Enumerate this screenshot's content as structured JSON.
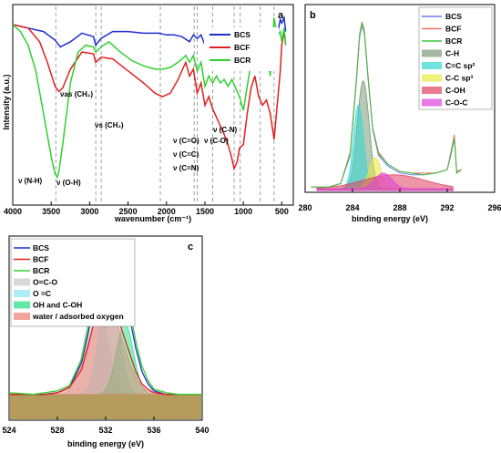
{
  "chart_data": [
    {
      "panel_label": "a",
      "type": "line",
      "xlabel": "wavenumber (cm⁻¹)",
      "ylabel": "Intensity (a.u.)",
      "xlim": [
        4000,
        350
      ],
      "x_ticks": [
        "4000",
        "3500",
        "3000",
        "2500",
        "2000",
        "1500",
        "1000",
        "500"
      ],
      "legend_placement": "top-right",
      "annotations": [
        {
          "text": "ν (N-H)",
          "x": 3720
        },
        {
          "text": "ν (O-H)",
          "x": 3380
        },
        {
          "text": "νas (CH₂)",
          "x": 3300
        },
        {
          "text": "νs (CH₂)",
          "x": 2900
        },
        {
          "text": "ν (C=O)",
          "x": 1700
        },
        {
          "text": "ν (C=C)",
          "x": 1700
        },
        {
          "text": "ν (C=N)",
          "x": 1700
        },
        {
          "text": "ν (C-N)",
          "x": 1100
        },
        {
          "text": "ν (C-O)",
          "x": 1100
        }
      ],
      "series": [
        {
          "name": "BCS",
          "color": "#1f2fd0",
          "x": [
            4000,
            3800,
            3600,
            3450,
            3380,
            3250,
            3100,
            2950,
            2920,
            2850,
            2700,
            2500,
            2300,
            2100,
            2000,
            1900,
            1800,
            1700,
            1650,
            1600,
            1550,
            1500,
            1450,
            1400,
            1350,
            1300,
            1250,
            1200,
            1150,
            1100,
            1050,
            1000,
            950,
            900,
            850,
            800,
            750,
            700,
            650,
            600,
            560,
            520,
            500,
            470,
            450
          ],
          "y": [
            0.92,
            0.9,
            0.88,
            0.83,
            0.79,
            0.82,
            0.87,
            0.85,
            0.8,
            0.84,
            0.88,
            0.88,
            0.87,
            0.87,
            0.86,
            0.86,
            0.85,
            0.82,
            0.86,
            0.84,
            0.86,
            0.8,
            0.84,
            0.86,
            0.84,
            0.85,
            0.83,
            0.84,
            0.82,
            0.84,
            0.81,
            0.86,
            0.87,
            0.85,
            0.87,
            0.86,
            0.88,
            0.87,
            0.88,
            0.83,
            0.86,
            0.95,
            0.93,
            0.96,
            0.88
          ]
        },
        {
          "name": "BCF",
          "color": "#e02020",
          "x": [
            4000,
            3800,
            3650,
            3550,
            3450,
            3400,
            3350,
            3250,
            3100,
            2950,
            2920,
            2850,
            2700,
            2500,
            2300,
            2150,
            2050,
            1950,
            1850,
            1750,
            1700,
            1650,
            1600,
            1550,
            1500,
            1450,
            1400,
            1350,
            1300,
            1250,
            1200,
            1150,
            1120,
            1080,
            1050,
            1000,
            950,
            900,
            850,
            800,
            750,
            700,
            650,
            600,
            560,
            520,
            500,
            470,
            450
          ],
          "y": [
            0.92,
            0.9,
            0.82,
            0.7,
            0.56,
            0.53,
            0.55,
            0.66,
            0.76,
            0.75,
            0.7,
            0.73,
            0.72,
            0.65,
            0.58,
            0.52,
            0.5,
            0.52,
            0.6,
            0.7,
            0.62,
            0.66,
            0.52,
            0.58,
            0.45,
            0.5,
            0.43,
            0.38,
            0.33,
            0.28,
            0.22,
            0.14,
            0.08,
            0.12,
            0.2,
            0.22,
            0.4,
            0.55,
            0.62,
            0.5,
            0.45,
            0.48,
            0.4,
            0.25,
            0.45,
            0.65,
            0.8,
            0.88,
            0.8
          ]
        },
        {
          "name": "BCR",
          "color": "#30d030",
          "x": [
            4000,
            3900,
            3800,
            3700,
            3600,
            3500,
            3450,
            3420,
            3400,
            3350,
            3250,
            3150,
            3050,
            2950,
            2920,
            2850,
            2750,
            2600,
            2450,
            2300,
            2150,
            2050,
            1950,
            1850,
            1750,
            1700,
            1650,
            1600,
            1550,
            1500,
            1450,
            1400,
            1350,
            1300,
            1250,
            1200,
            1150,
            1100,
            1050,
            1000,
            950,
            900,
            850,
            800,
            750,
            700,
            650,
            600,
            560,
            520,
            500,
            470,
            450
          ],
          "y": [
            0.92,
            0.88,
            0.8,
            0.65,
            0.4,
            0.15,
            0.05,
            0.03,
            0.06,
            0.22,
            0.58,
            0.76,
            0.8,
            0.79,
            0.76,
            0.79,
            0.82,
            0.76,
            0.71,
            0.68,
            0.66,
            0.66,
            0.67,
            0.7,
            0.74,
            0.7,
            0.74,
            0.65,
            0.7,
            0.56,
            0.62,
            0.58,
            0.62,
            0.58,
            0.6,
            0.56,
            0.6,
            0.55,
            0.5,
            0.42,
            0.56,
            0.7,
            0.76,
            0.7,
            0.74,
            0.8,
            0.62,
            0.96,
            0.85,
            0.88,
            0.82,
            0.9,
            0.8
          ]
        }
      ]
    },
    {
      "panel_label": "b",
      "type": "line",
      "xlabel": "binding energy (eV)",
      "xlim": [
        280,
        296
      ],
      "x_ticks": [
        "280",
        "284",
        "288",
        "292",
        "296"
      ],
      "legend_placement": "top-right",
      "legend": [
        "BCS",
        "BCF",
        "BCR",
        "C-H",
        "C=C sp²",
        "C-C sp³",
        "C-OH",
        "C-O-C"
      ],
      "series": [
        {
          "name": "BCS",
          "color": "#6a7ff0",
          "x": [
            280.5,
            282,
            283,
            283.8,
            284.3,
            284.6,
            284.8,
            285.0,
            285.3,
            285.7,
            286.2,
            287,
            288,
            289,
            290,
            291,
            292,
            292.3,
            292.6,
            292.8,
            293.2
          ],
          "y": [
            0.02,
            0.02,
            0.04,
            0.2,
            0.6,
            0.88,
            0.95,
            0.9,
            0.65,
            0.35,
            0.2,
            0.14,
            0.1,
            0.09,
            0.09,
            0.1,
            0.12,
            0.2,
            0.3,
            0.1,
            0.12
          ]
        },
        {
          "name": "BCF",
          "color": "#f07060",
          "x": [
            280.5,
            282,
            283,
            283.8,
            284.3,
            284.6,
            284.8,
            285.0,
            285.3,
            285.7,
            286.2,
            287,
            288,
            289,
            290,
            291,
            292,
            292.3,
            292.6,
            292.8,
            293.2
          ],
          "y": [
            0.02,
            0.02,
            0.04,
            0.22,
            0.62,
            0.9,
            0.97,
            0.92,
            0.67,
            0.36,
            0.22,
            0.15,
            0.11,
            0.1,
            0.1,
            0.1,
            0.12,
            0.22,
            0.32,
            0.11,
            0.12
          ]
        },
        {
          "name": "BCR",
          "color": "#40c040",
          "x": [
            280.5,
            282,
            283,
            283.8,
            284.3,
            284.6,
            284.8,
            285.0,
            285.3,
            285.7,
            286.2,
            287,
            288,
            289,
            290,
            291,
            292,
            292.3,
            292.6,
            292.8,
            293.2
          ],
          "y": [
            0.02,
            0.02,
            0.04,
            0.21,
            0.61,
            0.89,
            0.96,
            0.91,
            0.66,
            0.36,
            0.21,
            0.15,
            0.11,
            0.1,
            0.09,
            0.1,
            0.12,
            0.21,
            0.3,
            0.1,
            0.12
          ]
        },
        {
          "name": "C-H",
          "color": "#7a9a7a",
          "center": 284.9,
          "height": 0.62,
          "width": 0.5
        },
        {
          "name": "C=C sp²",
          "color": "#30d8d0",
          "center": 284.5,
          "height": 0.48,
          "width": 0.42
        },
        {
          "name": "C-C sp³",
          "color": "#e8e840",
          "center": 285.9,
          "height": 0.18,
          "width": 0.5
        },
        {
          "name": "C-OH",
          "color": "#e04060",
          "center": 287.5,
          "height": 0.08,
          "width": 2.6
        },
        {
          "name": "C-O-C",
          "color": "#e040e0",
          "center": 286.6,
          "height": 0.09,
          "width": 0.7
        }
      ]
    },
    {
      "panel_label": "c",
      "type": "line",
      "xlabel": "binding energy (eV)",
      "xlim": [
        524,
        540
      ],
      "x_ticks": [
        "524",
        "528",
        "532",
        "536",
        "540"
      ],
      "legend_placement": "top-left",
      "legend": [
        "BCS",
        "BCF",
        "BCR",
        "O=C-O",
        "O =C",
        "OH and C-OH",
        "water / adsorbed oxygen"
      ],
      "series": [
        {
          "name": "BCS",
          "color": "#1f2fd0",
          "x": [
            524,
            526,
            527,
            528,
            529,
            530,
            530.5,
            531,
            531.5,
            532,
            532.5,
            533,
            533.5,
            534,
            534.5,
            535,
            535.5,
            536,
            537,
            538,
            540
          ],
          "y": [
            0.12,
            0.12,
            0.12,
            0.13,
            0.16,
            0.3,
            0.45,
            0.62,
            0.78,
            0.88,
            0.9,
            0.85,
            0.72,
            0.55,
            0.38,
            0.25,
            0.18,
            0.14,
            0.12,
            0.12,
            0.12
          ]
        },
        {
          "name": "BCF",
          "color": "#e02020",
          "x": [
            524,
            526,
            527,
            528,
            529,
            530,
            530.5,
            531,
            531.5,
            532,
            532.5,
            533,
            533.5,
            534,
            534.5,
            535,
            535.5,
            536,
            537,
            538,
            540
          ],
          "y": [
            0.12,
            0.12,
            0.12,
            0.13,
            0.16,
            0.26,
            0.38,
            0.52,
            0.62,
            0.65,
            0.62,
            0.55,
            0.45,
            0.35,
            0.25,
            0.18,
            0.15,
            0.13,
            0.12,
            0.12,
            0.12
          ]
        },
        {
          "name": "BCR",
          "color": "#30d030",
          "x": [
            524,
            526,
            527,
            528,
            529,
            530,
            530.5,
            531,
            531.5,
            532,
            532.5,
            533,
            533.5,
            534,
            534.5,
            535,
            535.5,
            536,
            537,
            538,
            540
          ],
          "y": [
            0.13,
            0.12,
            0.13,
            0.14,
            0.17,
            0.32,
            0.48,
            0.66,
            0.84,
            0.96,
            0.98,
            0.92,
            0.78,
            0.6,
            0.42,
            0.28,
            0.2,
            0.15,
            0.13,
            0.12,
            0.12
          ]
        },
        {
          "name": "O=C-O",
          "color": "#c8c8c8",
          "center": 531.2,
          "height": 0.55,
          "width": 0.9
        },
        {
          "name": "O =C",
          "color": "#88e8f0",
          "center": 532.3,
          "height": 0.68,
          "width": 0.75
        },
        {
          "name": "OH and C-OH",
          "color": "#20e080",
          "center": 533.6,
          "height": 0.4,
          "width": 0.7
        },
        {
          "name": "water / adsorbed oxygen",
          "color": "#f08070",
          "center": 532.0,
          "height": 0.5,
          "width": 1.4
        }
      ]
    }
  ]
}
